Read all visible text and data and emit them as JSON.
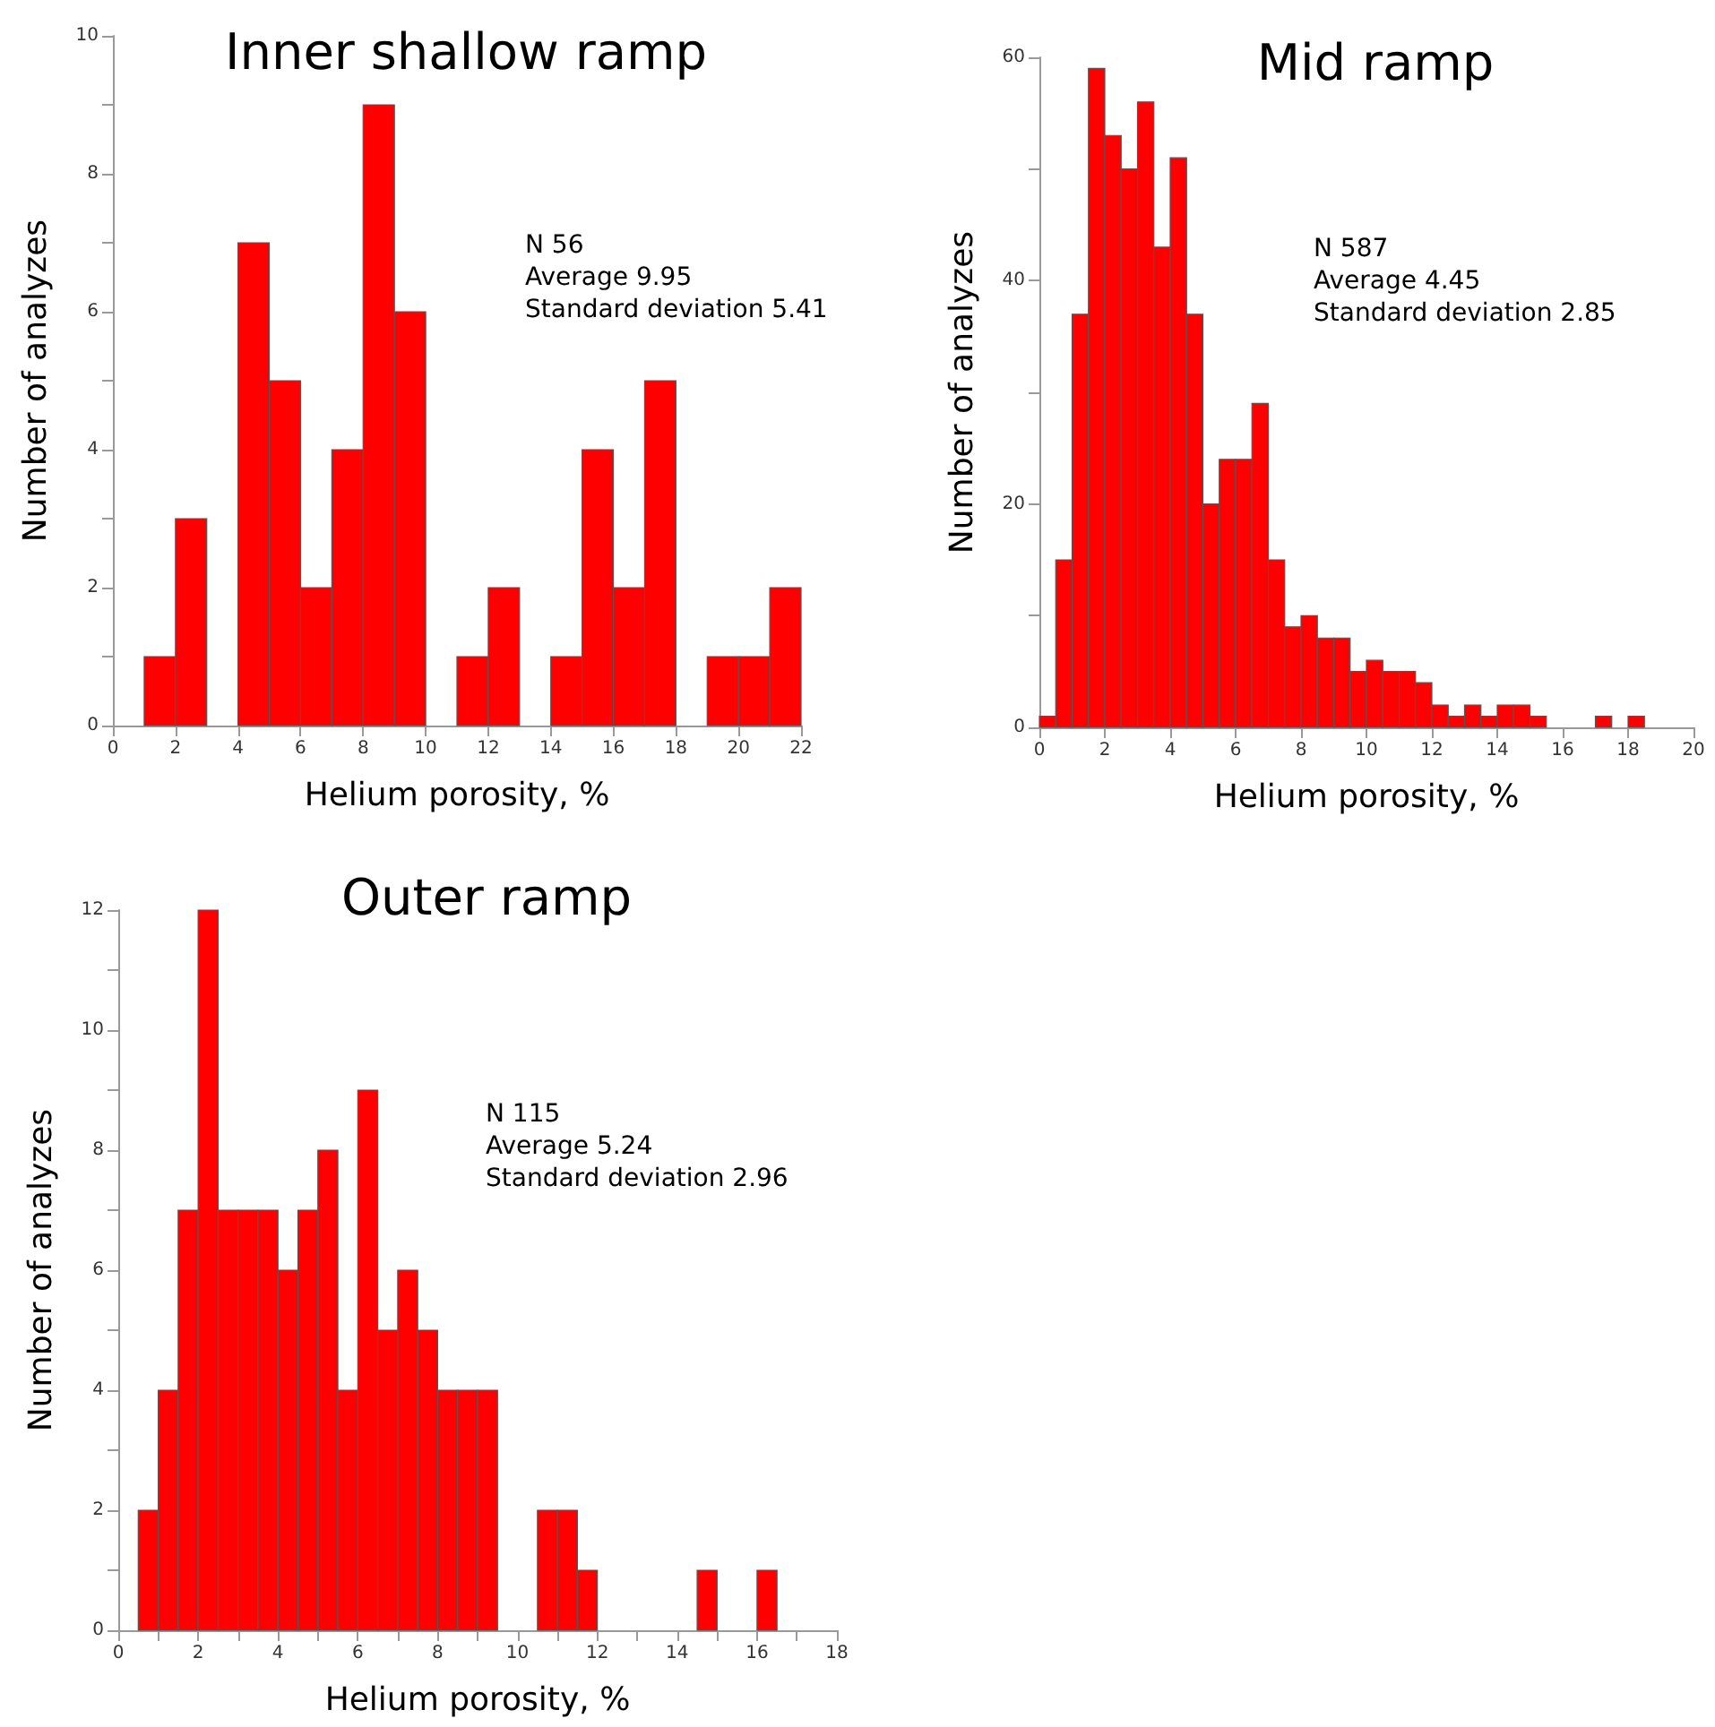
{
  "chart_data": [
    {
      "type": "histogram",
      "title": "Inner shallow ramp",
      "xlabel": "Helium porosity, %",
      "ylabel": "Number of analyzes",
      "color": "#ff0000",
      "bins": [
        1,
        2,
        3,
        4,
        5,
        6,
        7,
        8,
        9,
        10,
        11,
        12,
        13,
        14,
        15,
        16,
        17,
        18,
        19,
        20,
        21,
        22
      ],
      "values": [
        1,
        3,
        0,
        7,
        5,
        2,
        4,
        9,
        6,
        0,
        1,
        2,
        0,
        1,
        4,
        2,
        5,
        0,
        1,
        1,
        2
      ],
      "xlim": [
        0,
        22
      ],
      "xticks": [
        0,
        2,
        4,
        6,
        8,
        10,
        12,
        14,
        16,
        18,
        20,
        22
      ],
      "ylim": [
        0,
        10
      ],
      "yticks": [
        0,
        {
          "value": 1,
          "label": null
        },
        2,
        {
          "value": 3,
          "label": null
        },
        4,
        {
          "value": 5,
          "label": null
        },
        6,
        {
          "value": 7,
          "label": null
        },
        8,
        {
          "value": 9,
          "label": null
        },
        10
      ],
      "annotations": [
        "N 56",
        "Average 9.95",
        "Standard deviation 5.41"
      ]
    },
    {
      "type": "histogram",
      "title": "Mid ramp",
      "xlabel": "Helium porosity, %",
      "ylabel": "Number of analyzes",
      "color": "#ff0000",
      "bins": [
        0,
        0.5,
        1,
        1.5,
        2,
        2.5,
        3,
        3.5,
        4,
        4.5,
        5,
        5.5,
        6,
        6.5,
        7,
        7.5,
        8,
        8.5,
        9,
        9.5,
        10,
        10.5,
        11,
        11.5,
        12,
        12.5,
        13,
        13.5,
        14,
        14.5,
        15,
        15.5,
        16,
        16.5,
        17,
        17.5,
        18,
        18.5
      ],
      "values": [
        1,
        15,
        37,
        59,
        53,
        50,
        56,
        43,
        51,
        37,
        20,
        24,
        24,
        29,
        15,
        9,
        10,
        8,
        8,
        5,
        6,
        5,
        5,
        4,
        2,
        1,
        2,
        1,
        2,
        2,
        1,
        0,
        0,
        0,
        1,
        0,
        1
      ],
      "xlim": [
        0,
        20
      ],
      "xticks": [
        0,
        2,
        4,
        6,
        8,
        10,
        12,
        14,
        16,
        18,
        20
      ],
      "ylim": [
        0,
        60
      ],
      "yticks": [
        0,
        {
          "value": 10,
          "label": null
        },
        20,
        {
          "value": 30,
          "label": null
        },
        40,
        {
          "value": 50,
          "label": null
        },
        60
      ],
      "annotations": [
        "N 587",
        "Average 4.45",
        "Standard deviation 2.85"
      ]
    },
    {
      "type": "histogram",
      "title": "Outer ramp",
      "xlabel": "Helium porosity, %",
      "ylabel": "Number of analyzes",
      "color": "#ff0000",
      "bins": [
        0.5,
        1,
        1.5,
        2,
        2.5,
        3,
        3.5,
        4,
        4.5,
        5,
        5.5,
        6,
        6.5,
        7,
        7.5,
        8,
        8.5,
        9,
        9.5,
        10,
        10.5,
        11,
        11.5,
        12,
        12.5,
        13,
        13.5,
        14,
        14.5,
        15,
        15.5,
        16,
        16.5
      ],
      "values": [
        2,
        4,
        7,
        12,
        7,
        7,
        7,
        6,
        7,
        8,
        4,
        9,
        5,
        6,
        5,
        4,
        4,
        4,
        0,
        0,
        2,
        2,
        1,
        0,
        0,
        0,
        0,
        0,
        1,
        0,
        0,
        1
      ],
      "xlim": [
        0,
        18
      ],
      "xticks": [
        0,
        {
          "value": 1,
          "label": null
        },
        2,
        {
          "value": 3,
          "label": null
        },
        4,
        {
          "value": 5,
          "label": null
        },
        6,
        {
          "value": 7,
          "label": null
        },
        8,
        {
          "value": 9,
          "label": null
        },
        10,
        {
          "value": 11,
          "label": null
        },
        12,
        {
          "value": 13,
          "label": null
        },
        14,
        {
          "value": 15,
          "label": null
        },
        16,
        {
          "value": 17,
          "label": null
        },
        18
      ],
      "ylim": [
        0,
        12
      ],
      "yticks": [
        0,
        {
          "value": 1,
          "label": null
        },
        2,
        {
          "value": 3,
          "label": null
        },
        4,
        {
          "value": 5,
          "label": null
        },
        6,
        {
          "value": 7,
          "label": null
        },
        8,
        {
          "value": 9,
          "label": null
        },
        10,
        {
          "value": 11,
          "label": null
        },
        12
      ],
      "annotations": [
        "N 115",
        "Average 5.24",
        "Standard deviation 2.96"
      ]
    }
  ]
}
